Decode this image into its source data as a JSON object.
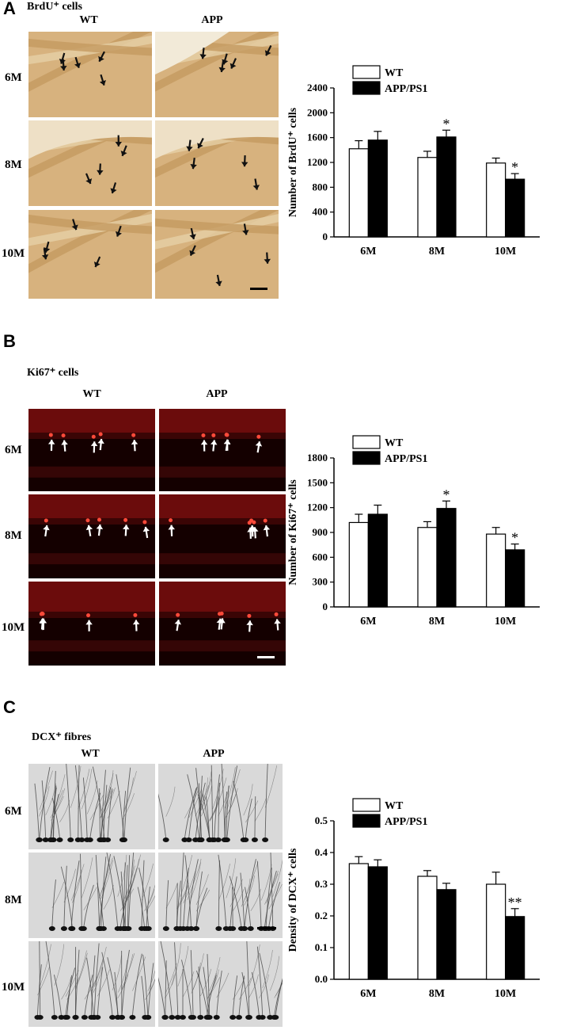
{
  "panels": [
    {
      "letter": "A",
      "title": "BrdU⁺ cells",
      "col_labels": [
        "WT",
        "APP"
      ],
      "row_labels": [
        "6M",
        "8M",
        "10M"
      ],
      "stain": "brightfield-brown"
    },
    {
      "letter": "B",
      "title": "Ki67⁺ cells",
      "col_labels": [
        "WT",
        "APP"
      ],
      "row_labels": [
        "6M",
        "8M",
        "10M"
      ],
      "stain": "fluorescence-red"
    },
    {
      "letter": "C",
      "title": "DCX⁺ fibres",
      "col_labels": [
        "WT",
        "APP"
      ],
      "row_labels": [
        "6M",
        "8M",
        "10M"
      ],
      "stain": "brightfield-gray"
    }
  ],
  "chart_data": [
    {
      "type": "bar",
      "categories": [
        "6M",
        "8M",
        "10M"
      ],
      "series": [
        {
          "name": "WT",
          "values": [
            1420,
            1280,
            1190
          ],
          "errors": [
            130,
            100,
            80
          ],
          "color": "#ffffff"
        },
        {
          "name": "APP/PS1",
          "values": [
            1560,
            1610,
            930
          ],
          "errors": [
            140,
            110,
            90
          ],
          "color": "#000000"
        }
      ],
      "significance": [
        {
          "category": "8M",
          "series": "APP/PS1",
          "mark": "*"
        },
        {
          "category": "10M",
          "series": "APP/PS1",
          "mark": "*"
        }
      ],
      "ylabel": "Number of BrdU⁺ cells",
      "ylim": [
        0,
        2400
      ],
      "yticks": [
        "0",
        "400",
        "800",
        "1200",
        "1600",
        "2000",
        "2400"
      ],
      "legend_position": "top-left"
    },
    {
      "type": "bar",
      "categories": [
        "6M",
        "8M",
        "10M"
      ],
      "series": [
        {
          "name": "WT",
          "values": [
            1020,
            960,
            880
          ],
          "errors": [
            100,
            70,
            80
          ],
          "color": "#ffffff"
        },
        {
          "name": "APP/PS1",
          "values": [
            1120,
            1190,
            690
          ],
          "errors": [
            110,
            90,
            70
          ],
          "color": "#000000"
        }
      ],
      "significance": [
        {
          "category": "8M",
          "series": "APP/PS1",
          "mark": "*"
        },
        {
          "category": "10M",
          "series": "APP/PS1",
          "mark": "*"
        }
      ],
      "ylabel": "Number of Ki67⁺ cells",
      "ylim": [
        0,
        1800
      ],
      "yticks": [
        "0",
        "300",
        "600",
        "900",
        "1200",
        "1500",
        "1800"
      ],
      "legend_position": "top-left"
    },
    {
      "type": "bar",
      "categories": [
        "6M",
        "8M",
        "10M"
      ],
      "series": [
        {
          "name": "WT",
          "values": [
            0.365,
            0.325,
            0.3
          ],
          "errors": [
            0.022,
            0.018,
            0.038
          ],
          "color": "#ffffff"
        },
        {
          "name": "APP/PS1",
          "values": [
            0.355,
            0.283,
            0.198
          ],
          "errors": [
            0.022,
            0.02,
            0.025
          ],
          "color": "#000000"
        }
      ],
      "significance": [
        {
          "category": "10M",
          "series": "APP/PS1",
          "mark": "**"
        }
      ],
      "ylabel": "Density of DCX⁺ cells",
      "ylim": [
        0,
        0.5
      ],
      "yticks": [
        "0.0",
        "0.1",
        "0.2",
        "0.3",
        "0.4",
        "0.5"
      ],
      "legend_position": "top-left"
    }
  ]
}
